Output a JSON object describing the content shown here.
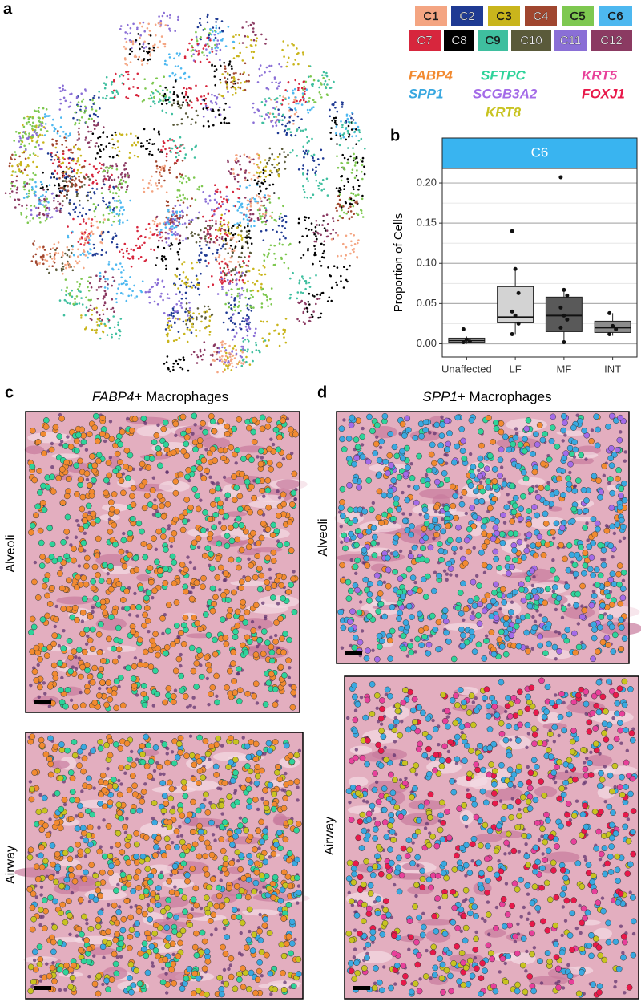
{
  "panels": {
    "a": "a",
    "b": "b",
    "c": "c",
    "d": "d"
  },
  "legend": {
    "clusters": [
      {
        "label": "C1",
        "color": "#f4a582"
      },
      {
        "label": "C2",
        "color": "#1f3a93"
      },
      {
        "label": "C3",
        "color": "#c9b51c"
      },
      {
        "label": "C4",
        "color": "#a0462f"
      },
      {
        "label": "C5",
        "color": "#7ec850"
      },
      {
        "label": "C6",
        "color": "#4db8f0"
      },
      {
        "label": "C7",
        "color": "#d7263d"
      },
      {
        "label": "C8",
        "color": "#000000"
      },
      {
        "label": "C9",
        "color": "#3fbf9f"
      },
      {
        "label": "C10",
        "color": "#5a5a3a"
      },
      {
        "label": "C11",
        "color": "#8a6fd6"
      },
      {
        "label": "C12",
        "color": "#8b3a62"
      }
    ],
    "genes": [
      {
        "label": "FABP4",
        "color": "#f28a30"
      },
      {
        "label": "SPP1",
        "color": "#3aa8e0"
      },
      {
        "label": "SFTPC",
        "color": "#2ed39a"
      },
      {
        "label": "SCGB3A2",
        "color": "#a46be8"
      },
      {
        "label": "KRT8",
        "color": "#c8c320"
      },
      {
        "label": "KRT5",
        "color": "#e8409a"
      },
      {
        "label": "FOXJ1",
        "color": "#e8194a"
      }
    ]
  },
  "chart_data": {
    "type": "box",
    "facet": "C6",
    "y_label": "Proportion of Cells",
    "categories": [
      "Unaffected",
      "LF",
      "MF",
      "INT"
    ],
    "colors": [
      "#ffffff",
      "#d3d3d3",
      "#595959",
      "#8c8c8c"
    ],
    "boxes": [
      {
        "whislo": 0,
        "q1": 0.002,
        "median": 0.004,
        "q3": 0.007,
        "whishi": 0.009,
        "points": [
          0.018,
          0.005,
          0.003,
          0.002
        ]
      },
      {
        "whislo": 0.012,
        "q1": 0.026,
        "median": 0.033,
        "q3": 0.071,
        "whishi": 0.093,
        "points": [
          0.14,
          0.093,
          0.063,
          0.04,
          0.035,
          0.025,
          0.012
        ]
      },
      {
        "whislo": 0.002,
        "q1": 0.015,
        "median": 0.035,
        "q3": 0.058,
        "whishi": 0.067,
        "points": [
          0.207,
          0.067,
          0.06,
          0.045,
          0.035,
          0.03,
          0.02,
          0.002
        ]
      },
      {
        "whislo": 0.01,
        "q1": 0.014,
        "median": 0.02,
        "q3": 0.028,
        "whishi": 0.038,
        "points": [
          0.038,
          0.022,
          0.018,
          0.012
        ]
      }
    ],
    "ylim": [
      -0.0165,
      0.218
    ],
    "yticks": [
      {
        "value": 0,
        "label": "0.00"
      },
      0.05,
      {
        "value": 0.1,
        "label": "0.10"
      },
      0.15,
      {
        "value": 0.2,
        "label": "0.20"
      }
    ],
    "grid": true
  },
  "images": {
    "c": {
      "title_gene": "FABP4",
      "title_suffix": "+ Macrophages",
      "rows": [
        "Alveoli",
        "Airway"
      ]
    },
    "d": {
      "title_gene": "SPP1",
      "title_suffix": "+ Macrophages",
      "rows": [
        "Alveoli",
        "Airway"
      ]
    }
  }
}
